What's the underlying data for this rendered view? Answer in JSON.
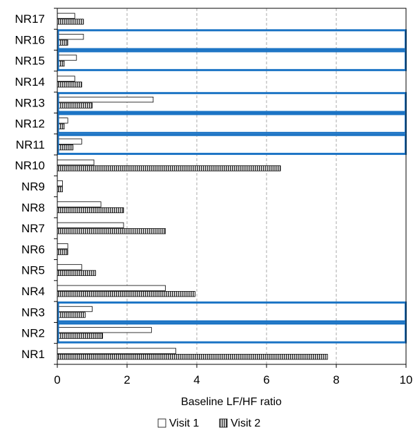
{
  "chart_data": {
    "type": "bar",
    "orientation": "horizontal",
    "title": "",
    "xlabel": "Baseline LF/HF ratio",
    "ylabel": "",
    "xlim": [
      0,
      10
    ],
    "xticks": [
      0,
      2,
      4,
      6,
      8,
      10
    ],
    "grid": "vertical dashed",
    "legend_position": "bottom",
    "categories": [
      "NR1",
      "NR2",
      "NR3",
      "NR4",
      "NR5",
      "NR6",
      "NR7",
      "NR8",
      "NR9",
      "NR10",
      "NR11",
      "NR12",
      "NR13",
      "NR14",
      "NR15",
      "NR16",
      "NR17"
    ],
    "series": [
      {
        "name": "Visit 1",
        "style": "white",
        "values": [
          3.4,
          2.7,
          1.0,
          3.1,
          0.7,
          0.3,
          1.9,
          1.25,
          0.15,
          1.05,
          0.7,
          0.3,
          2.75,
          0.5,
          0.55,
          0.75,
          0.5
        ]
      },
      {
        "name": "Visit 2",
        "style": "hatched",
        "values": [
          7.75,
          1.3,
          0.8,
          3.95,
          1.1,
          0.3,
          3.1,
          1.9,
          0.15,
          6.4,
          0.45,
          0.2,
          1.0,
          0.7,
          0.2,
          0.3,
          0.75
        ]
      }
    ],
    "highlighted_categories": [
      "NR2",
      "NR3",
      "NR11",
      "NR12",
      "NR13",
      "NR15",
      "NR16"
    ],
    "highlight_color": "#1a73c4"
  }
}
